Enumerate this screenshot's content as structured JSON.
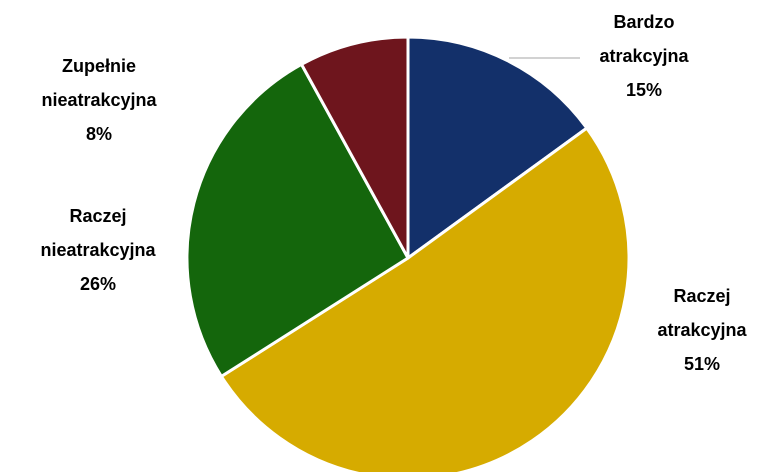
{
  "chart_data": {
    "type": "pie",
    "title": "",
    "slices": [
      {
        "label_line1": "Bardzo",
        "label_line2": "atrakcyjna",
        "value": 15,
        "value_label": "15%",
        "color": "#13306a"
      },
      {
        "label_line1": "Raczej",
        "label_line2": "atrakcyjna",
        "value": 51,
        "value_label": "51%",
        "color": "#d6ab00"
      },
      {
        "label_line1": "Raczej",
        "label_line2": "nieatrakcyjna",
        "value": 26,
        "value_label": "26%",
        "color": "#14660c"
      },
      {
        "label_line1": "Zupełnie",
        "label_line2": "nieatrakcyjna",
        "value": 8,
        "value_label": "8%",
        "color": "#6e151d"
      }
    ],
    "start_angle": "12 o'clock",
    "direction": "clockwise",
    "legend": "none"
  }
}
